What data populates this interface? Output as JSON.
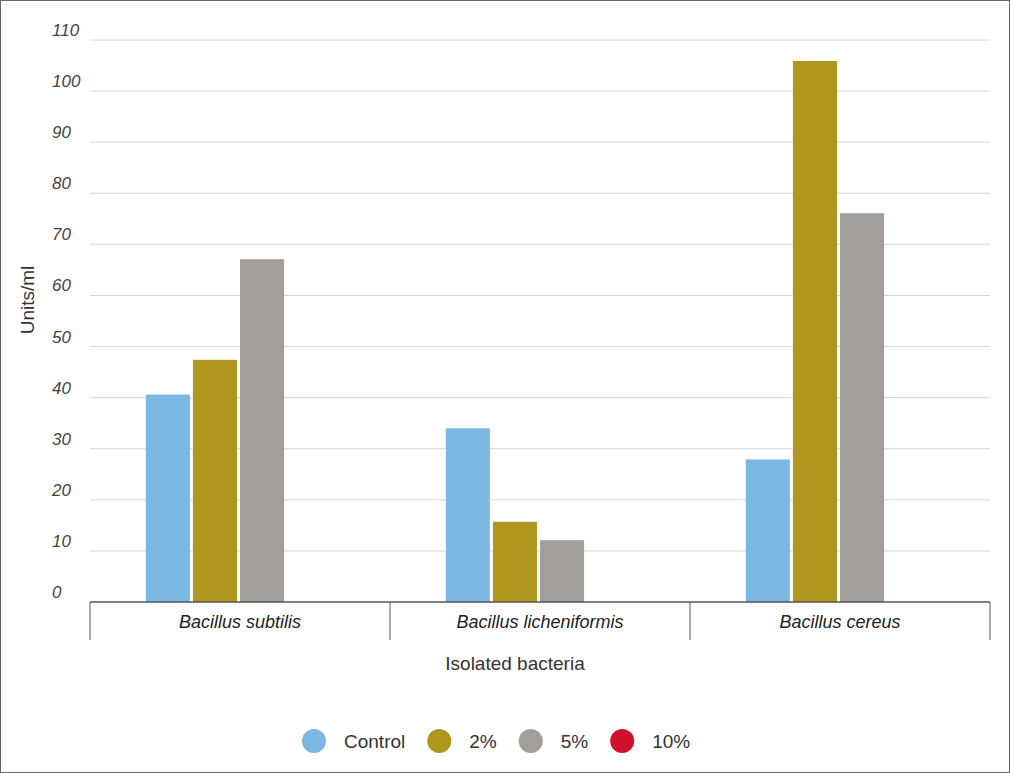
{
  "chart_data": {
    "type": "bar",
    "x_label": "Isolated bacteria",
    "y_label": "Units/ml",
    "categories": [
      "Bacillus subtilis",
      "Bacillus licheniformis",
      "Bacillus cereus"
    ],
    "series": [
      {
        "name": "Control",
        "color": "#7ab8e3",
        "values": [
          40.6,
          34.0,
          27.9
        ]
      },
      {
        "name": "2%",
        "color": "#ae961f",
        "values": [
          47.4,
          15.7,
          105.9
        ]
      },
      {
        "name": "5%",
        "color": "#a39e99",
        "values": [
          67.1,
          12.1,
          76.1
        ]
      },
      {
        "name": "10%",
        "color": "#d0112b",
        "values": [
          0,
          0,
          0
        ]
      }
    ],
    "ylim": [
      0,
      110
    ],
    "yticks": [
      0,
      10,
      20,
      30,
      40,
      50,
      60,
      70,
      80,
      90,
      100,
      110
    ],
    "grid": true,
    "legend": "bottom"
  }
}
